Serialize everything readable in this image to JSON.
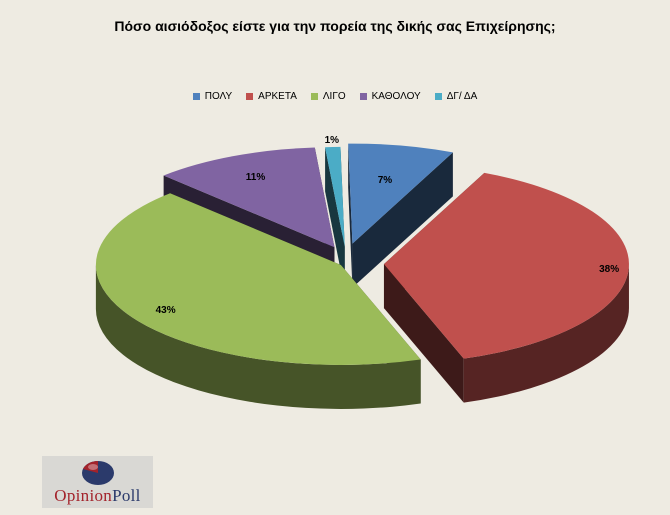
{
  "chart_data": {
    "type": "pie",
    "title": "Πόσο αισιόδοξος είστε για την πορεία της δικής σας Επιχείρησης;",
    "categories": [
      "ΠΟΛΥ",
      "ΑΡΚΕΤΑ",
      "ΛΙΓΟ",
      "ΚΑΘΟΛΟΥ",
      "ΔΓ/ ΔΑ"
    ],
    "values": [
      7,
      38,
      43,
      11,
      1
    ],
    "data_labels": [
      "7%",
      "38%",
      "43%",
      "11%",
      "1%"
    ],
    "colors": [
      "#4f81bd",
      "#c0504d",
      "#9bbb59",
      "#8064a2",
      "#4bacc6"
    ],
    "legend_position": "top",
    "exploded": true,
    "three_d": true
  },
  "logo": {
    "text_part1": "Opinion",
    "text_part2": "Poll"
  }
}
